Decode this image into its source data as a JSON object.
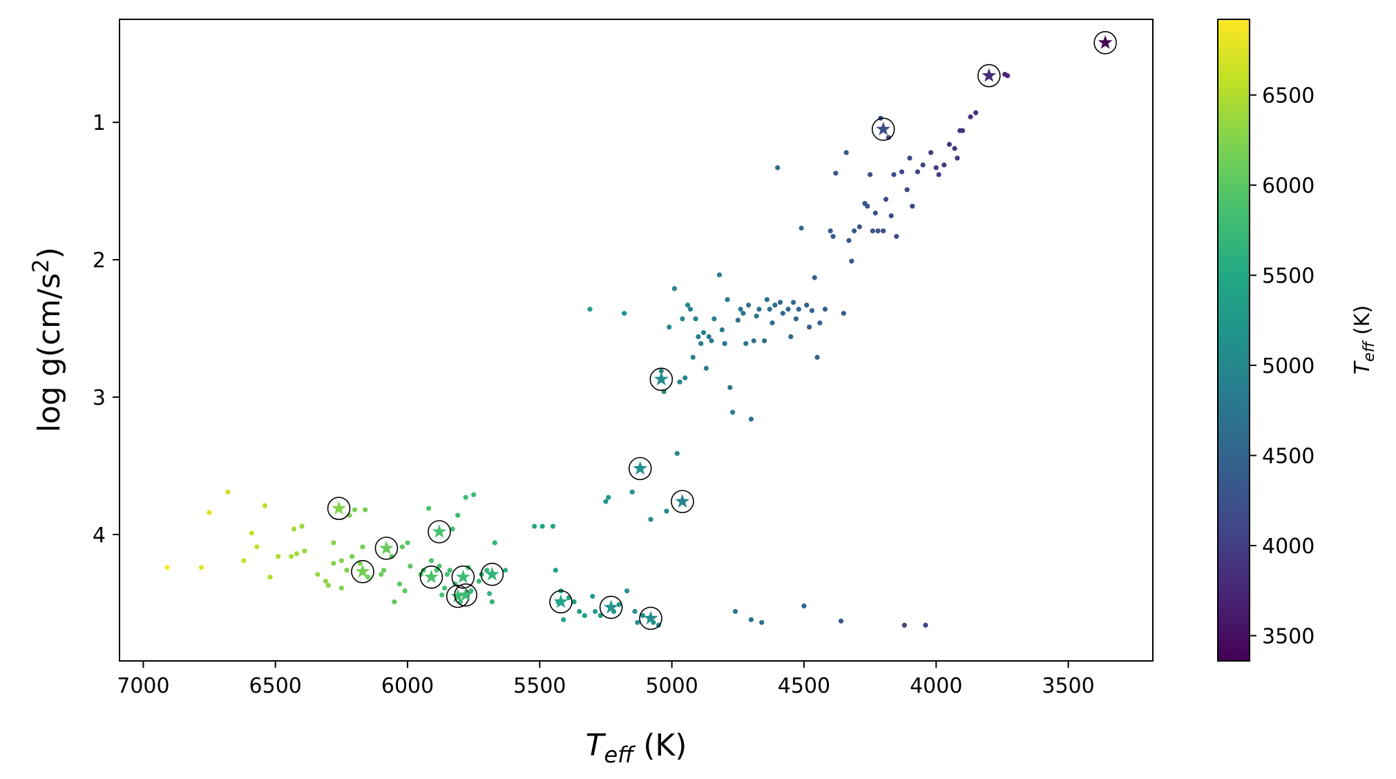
{
  "chart_data": {
    "type": "scatter",
    "xlabel": {
      "main": "T",
      "sub": "eff",
      "unit": " (K)"
    },
    "ylabel": {
      "text": "log g(cm/s",
      "sup": "2",
      "close": ")"
    },
    "xlim": [
      7090,
      3180
    ],
    "ylim": [
      4.92,
      0.25
    ],
    "x_ticks": [
      7000,
      6500,
      6000,
      5500,
      5000,
      4500,
      4000,
      3500
    ],
    "y_ticks": [
      1,
      2,
      3,
      4
    ],
    "colorbar": {
      "label": {
        "main": "T",
        "sub": "eff",
        "unit": " (K)"
      },
      "range": [
        3360,
        6920
      ],
      "ticks": [
        3500,
        4000,
        4500,
        5000,
        5500,
        6000,
        6500
      ],
      "colormap": "viridis"
    },
    "series": [
      {
        "marker": "dot",
        "points": [
          [
            6910,
            4.24
          ],
          [
            6780,
            4.24
          ],
          [
            6750,
            3.84
          ],
          [
            6680,
            3.69
          ],
          [
            6620,
            4.19
          ],
          [
            6590,
            3.99
          ],
          [
            6570,
            4.09
          ],
          [
            6540,
            3.79
          ],
          [
            6520,
            4.31
          ],
          [
            6490,
            4.16
          ],
          [
            6440,
            4.16
          ],
          [
            6430,
            3.96
          ],
          [
            6420,
            4.14
          ],
          [
            6400,
            3.94
          ],
          [
            6390,
            4.12
          ],
          [
            6340,
            4.29
          ],
          [
            6310,
            4.34
          ],
          [
            6300,
            4.37
          ],
          [
            6280,
            4.06
          ],
          [
            6280,
            4.21
          ],
          [
            6250,
            4.39
          ],
          [
            6250,
            4.19
          ],
          [
            6230,
            4.26
          ],
          [
            6220,
            3.86
          ],
          [
            6210,
            4.16
          ],
          [
            6200,
            3.82
          ],
          [
            6180,
            4.21
          ],
          [
            6170,
            4.09
          ],
          [
            6160,
            3.82
          ],
          [
            6150,
            4.31
          ],
          [
            6100,
            4.29
          ],
          [
            6090,
            4.26
          ],
          [
            6080,
            4.11
          ],
          [
            6060,
            4.16
          ],
          [
            6050,
            4.49
          ],
          [
            6030,
            4.36
          ],
          [
            6020,
            4.09
          ],
          [
            6010,
            4.41
          ],
          [
            6000,
            4.06
          ],
          [
            5990,
            4.23
          ],
          [
            5950,
            4.29
          ],
          [
            5940,
            4.26
          ],
          [
            5920,
            3.81
          ],
          [
            5910,
            4.19
          ],
          [
            5890,
            4.26
          ],
          [
            5880,
            4.23
          ],
          [
            5870,
            4.44
          ],
          [
            5860,
            4.39
          ],
          [
            5850,
            4.29
          ],
          [
            5840,
            4.26
          ],
          [
            5830,
            3.96
          ],
          [
            5820,
            4.36
          ],
          [
            5810,
            3.86
          ],
          [
            5800,
            4.49
          ],
          [
            5790,
            4.31
          ],
          [
            5780,
            3.73
          ],
          [
            5770,
            4.24
          ],
          [
            5760,
            4.41
          ],
          [
            5750,
            3.71
          ],
          [
            5730,
            4.34
          ],
          [
            5720,
            4.29
          ],
          [
            5700,
            4.26
          ],
          [
            5690,
            4.43
          ],
          [
            5680,
            4.49
          ],
          [
            5670,
            4.06
          ],
          [
            5630,
            4.26
          ],
          [
            5520,
            3.94
          ],
          [
            5490,
            3.94
          ],
          [
            5450,
            3.94
          ],
          [
            5440,
            4.26
          ],
          [
            5430,
            4.49
          ],
          [
            5420,
            4.41
          ],
          [
            5410,
            4.62
          ],
          [
            5390,
            4.46
          ],
          [
            5370,
            4.49
          ],
          [
            5350,
            4.56
          ],
          [
            5330,
            4.59
          ],
          [
            5310,
            2.36
          ],
          [
            5300,
            4.45
          ],
          [
            5290,
            4.56
          ],
          [
            5270,
            4.59
          ],
          [
            5250,
            3.76
          ],
          [
            5240,
            3.73
          ],
          [
            5220,
            4.56
          ],
          [
            5200,
            4.51
          ],
          [
            5180,
            2.39
          ],
          [
            5170,
            4.41
          ],
          [
            5150,
            3.69
          ],
          [
            5140,
            4.56
          ],
          [
            5130,
            4.64
          ],
          [
            5120,
            3.51
          ],
          [
            5110,
            4.59
          ],
          [
            5080,
            3.89
          ],
          [
            5070,
            4.64
          ],
          [
            5050,
            4.66
          ],
          [
            5040,
            2.81
          ],
          [
            5030,
            2.96
          ],
          [
            5020,
            3.83
          ],
          [
            5010,
            2.49
          ],
          [
            4990,
            2.21
          ],
          [
            4980,
            3.41
          ],
          [
            4970,
            2.89
          ],
          [
            4960,
            2.43
          ],
          [
            4950,
            2.86
          ],
          [
            4940,
            2.33
          ],
          [
            4930,
            2.36
          ],
          [
            4920,
            2.71
          ],
          [
            4910,
            2.43
          ],
          [
            4900,
            2.56
          ],
          [
            4890,
            2.61
          ],
          [
            4880,
            2.53
          ],
          [
            4870,
            2.79
          ],
          [
            4860,
            2.56
          ],
          [
            4850,
            2.59
          ],
          [
            4840,
            2.43
          ],
          [
            4820,
            2.11
          ],
          [
            4810,
            2.51
          ],
          [
            4800,
            2.61
          ],
          [
            4790,
            2.29
          ],
          [
            4780,
            2.93
          ],
          [
            4770,
            3.11
          ],
          [
            4760,
            4.56
          ],
          [
            4750,
            2.44
          ],
          [
            4740,
            2.36
          ],
          [
            4730,
            2.39
          ],
          [
            4720,
            2.61
          ],
          [
            4710,
            2.33
          ],
          [
            4700,
            3.16
          ],
          [
            4700,
            4.62
          ],
          [
            4690,
            2.59
          ],
          [
            4680,
            2.41
          ],
          [
            4670,
            2.36
          ],
          [
            4660,
            4.64
          ],
          [
            4650,
            2.59
          ],
          [
            4640,
            2.29
          ],
          [
            4630,
            2.36
          ],
          [
            4620,
            2.46
          ],
          [
            4610,
            2.33
          ],
          [
            4600,
            1.33
          ],
          [
            4590,
            2.31
          ],
          [
            4580,
            2.39
          ],
          [
            4560,
            2.36
          ],
          [
            4550,
            2.56
          ],
          [
            4540,
            2.31
          ],
          [
            4530,
            2.43
          ],
          [
            4520,
            2.36
          ],
          [
            4510,
            1.77
          ],
          [
            4500,
            4.52
          ],
          [
            4490,
            2.33
          ],
          [
            4480,
            2.49
          ],
          [
            4470,
            2.37
          ],
          [
            4460,
            2.13
          ],
          [
            4450,
            2.71
          ],
          [
            4440,
            2.46
          ],
          [
            4420,
            2.36
          ],
          [
            4400,
            1.79
          ],
          [
            4390,
            1.83
          ],
          [
            4380,
            1.37
          ],
          [
            4360,
            4.63
          ],
          [
            4350,
            2.39
          ],
          [
            4340,
            1.22
          ],
          [
            4330,
            1.86
          ],
          [
            4320,
            2.01
          ],
          [
            4310,
            1.79
          ],
          [
            4290,
            1.76
          ],
          [
            4270,
            1.59
          ],
          [
            4260,
            1.61
          ],
          [
            4250,
            1.38
          ],
          [
            4240,
            1.79
          ],
          [
            4230,
            1.66
          ],
          [
            4220,
            1.79
          ],
          [
            4210,
            0.97
          ],
          [
            4200,
            1.79
          ],
          [
            4190,
            1.56
          ],
          [
            4180,
            1.11
          ],
          [
            4170,
            1.68
          ],
          [
            4160,
            1.38
          ],
          [
            4150,
            1.83
          ],
          [
            4130,
            1.36
          ],
          [
            4120,
            4.66
          ],
          [
            4110,
            1.49
          ],
          [
            4100,
            1.26
          ],
          [
            4090,
            1.61
          ],
          [
            4070,
            1.36
          ],
          [
            4050,
            1.31
          ],
          [
            4040,
            4.66
          ],
          [
            4020,
            1.22
          ],
          [
            4000,
            1.33
          ],
          [
            3990,
            1.38
          ],
          [
            3970,
            1.31
          ],
          [
            3950,
            1.16
          ],
          [
            3930,
            1.19
          ],
          [
            3920,
            1.26
          ],
          [
            3910,
            1.06
          ],
          [
            3900,
            1.06
          ],
          [
            3870,
            0.96
          ],
          [
            3850,
            0.93
          ],
          [
            3740,
            0.65
          ],
          [
            3730,
            0.66
          ]
        ]
      },
      {
        "marker": "star-circled",
        "points": [
          [
            6260,
            3.81
          ],
          [
            6170,
            4.27
          ],
          [
            6080,
            4.1
          ],
          [
            5880,
            3.98
          ],
          [
            5910,
            4.31
          ],
          [
            5790,
            4.31
          ],
          [
            5810,
            4.45
          ],
          [
            5780,
            4.44
          ],
          [
            5680,
            4.29
          ],
          [
            5420,
            4.49
          ],
          [
            5230,
            4.53
          ],
          [
            5080,
            4.61
          ],
          [
            5040,
            2.87
          ],
          [
            5120,
            3.52
          ],
          [
            4960,
            3.76
          ],
          [
            4200,
            1.05
          ],
          [
            3800,
            0.66
          ],
          [
            3360,
            0.42
          ]
        ]
      }
    ]
  }
}
